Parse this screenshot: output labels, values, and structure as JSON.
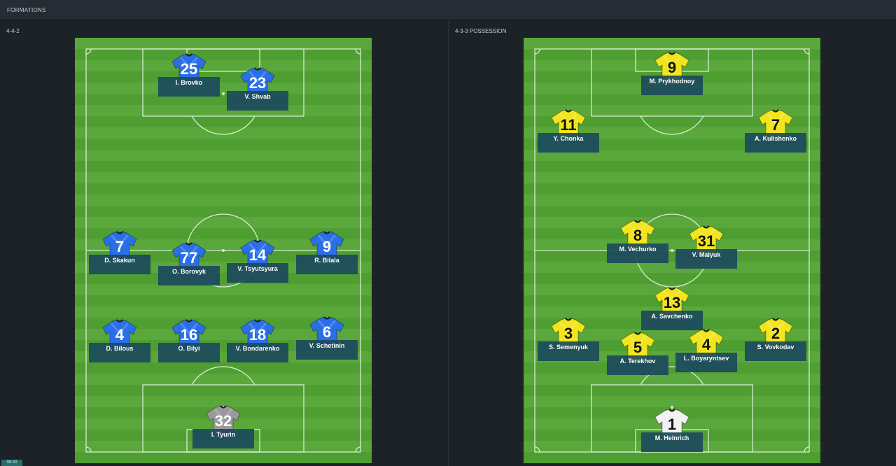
{
  "header": {
    "title": "FORMATIONS"
  },
  "time": "00:00",
  "colors": {
    "home_shirt": "#2a6ee8",
    "home_gk": "#9a9a9a",
    "away_shirt": "#f2e51e",
    "away_gk": "#f2f2f2",
    "pitch": "#4f9e32",
    "plate": "#1c4a5c"
  },
  "home": {
    "formation": "4-4-2",
    "players": [
      {
        "number": "25",
        "name": "I. Brovko",
        "role": "fwd"
      },
      {
        "number": "23",
        "name": "V. Shvab",
        "role": "fwd"
      },
      {
        "number": "7",
        "name": "D. Skakun",
        "role": "mid"
      },
      {
        "number": "77",
        "name": "O. Borovyk",
        "role": "mid"
      },
      {
        "number": "14",
        "name": "V. Tsyutsyura",
        "role": "mid"
      },
      {
        "number": "9",
        "name": "R. Bilala",
        "role": "mid"
      },
      {
        "number": "4",
        "name": "D. Bilous",
        "role": "def"
      },
      {
        "number": "16",
        "name": "O. Bilyi",
        "role": "def"
      },
      {
        "number": "18",
        "name": "V. Bondarenko",
        "role": "def"
      },
      {
        "number": "6",
        "name": "V. Schetinin",
        "role": "def"
      },
      {
        "number": "32",
        "name": "I. Tyurin",
        "role": "gk"
      }
    ]
  },
  "away": {
    "formation": "4-3-3 POSSESSION",
    "players": [
      {
        "number": "9",
        "name": "M. Prykhodnoy",
        "role": "fwd"
      },
      {
        "number": "11",
        "name": "Y. Chonka",
        "role": "fwd"
      },
      {
        "number": "7",
        "name": "A. Kulishenko",
        "role": "fwd"
      },
      {
        "number": "8",
        "name": "M. Vechurko",
        "role": "mid"
      },
      {
        "number": "31",
        "name": "V. Malyuk",
        "role": "mid"
      },
      {
        "number": "13",
        "name": "A. Savchenko",
        "role": "mid"
      },
      {
        "number": "3",
        "name": "S. Semenyuk",
        "role": "def"
      },
      {
        "number": "5",
        "name": "A. Terekhov",
        "role": "def"
      },
      {
        "number": "4",
        "name": "L. Boyaryntsev",
        "role": "def"
      },
      {
        "number": "2",
        "name": "S. Vovkodav",
        "role": "def"
      },
      {
        "number": "1",
        "name": "M. Heinrich",
        "role": "gk"
      }
    ]
  }
}
